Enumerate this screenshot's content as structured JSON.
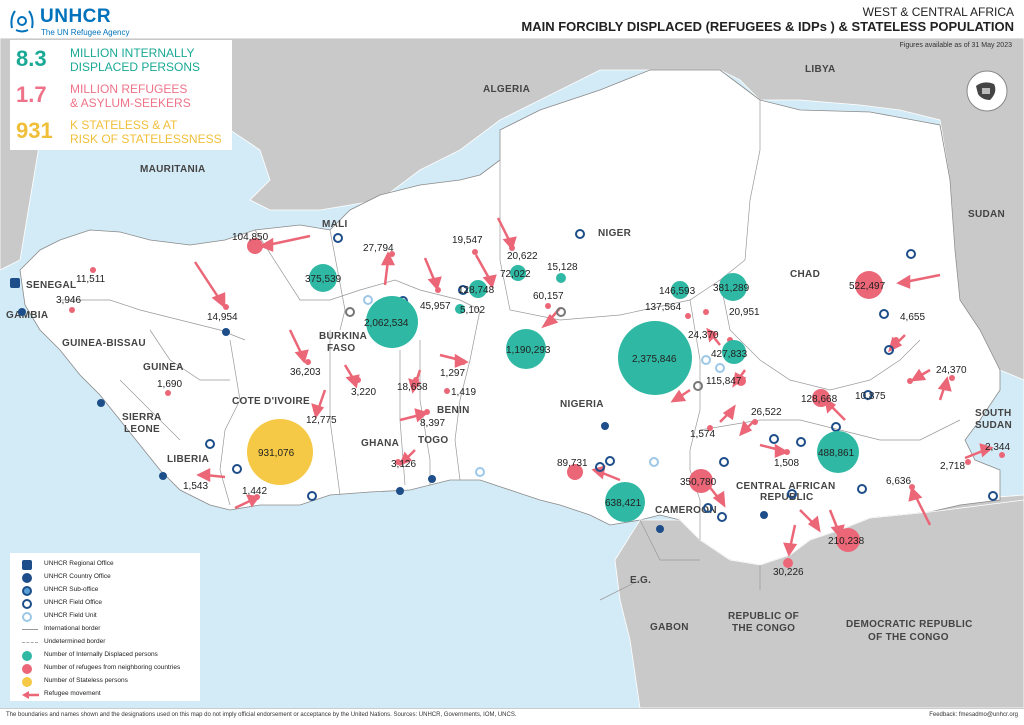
{
  "header": {
    "logo_name": "UNHCR",
    "logo_tagline": "The UN Refugee Agency",
    "region": "WEST & CENTRAL AFRICA",
    "title": "MAIN FORCIBLY DISPLACED (REFUGEES & IDPs ) & STATELESS POPULATION",
    "subtitle": "Figures available as of 31 May 2023"
  },
  "stats": [
    {
      "number": "8.3",
      "text_line1": "MILLION INTERNALLY",
      "text_line2": "DISPLACED PERSONS",
      "color": "#1aa995"
    },
    {
      "number": "1.7",
      "text_line1": "MILLION REFUGEES",
      "text_line2": "& ASYLUM-SEEKERS",
      "color": "#ee7388"
    },
    {
      "number": "931",
      "text_line1": "K STATELESS & AT",
      "text_line2": "RISK OF STATELESSNESS",
      "color": "#f0bf3a"
    }
  ],
  "colors": {
    "idp": "#2fb8a3",
    "refugee": "#eb6677",
    "stateless": "#f5c945",
    "office": "#1d4e89",
    "land_focus": "#ffffff",
    "land_other": "#c8c8c8",
    "sea": "#cfe8f5"
  },
  "countries": {
    "mauritania": "MAURITANIA",
    "algeria": "ALGERIA",
    "libya": "LIBYA",
    "mali": "MALI",
    "niger": "NIGER",
    "chad": "CHAD",
    "sudan": "SUDAN",
    "senegal": "SENEGAL",
    "gambia": "GAMBIA",
    "guinea_bissau": "GUINEA-BISSAU",
    "guinea": "GUINEA",
    "sierra_leone_1": "SIERRA",
    "sierra_leone_2": "LEONE",
    "liberia": "LIBERIA",
    "cote_divoire": "COTE D'IVOIRE",
    "burkina_1": "BURKINA",
    "burkina_2": "FASO",
    "ghana": "GHANA",
    "togo": "TOGO",
    "benin": "BENIN",
    "nigeria": "NIGERIA",
    "cameroon": "CAMEROON",
    "car_1": "CENTRAL AFRICAN",
    "car_2": "REPUBLIC",
    "south_sudan_1": "SOUTH",
    "south_sudan_2": "SUDAN",
    "eg": "E.G.",
    "gabon": "GABON",
    "roc_1": "REPUBLIC OF",
    "roc_2": "THE CONGO",
    "drc_1": "DEMOCRATIC REPUBLIC",
    "drc_2": "OF THE CONGO"
  },
  "values": {
    "idp_mali": "375,539",
    "idp_burkina": "2,062,534",
    "idp_niger_w": "128,748",
    "idp_niger_2": "72,022",
    "idp_nigeria_nw": "1,190,293",
    "idp_nigeria_ne": "2,375,846",
    "idp_chad_1": "381,289",
    "idp_chad_2": "146,593",
    "idp_chad_3": "427,833",
    "idp_car": "488,861",
    "idp_cameroon": "638,421",
    "stateless_ci": "931,076",
    "ref_mauritania": "104,850",
    "ref_chad_east": "522,497",
    "ref_car_1": "350,780",
    "ref_car_2": "128,668",
    "ref_cameroon": "89,731",
    "ref_drc": "210,238",
    "r_11511": "11,511",
    "r_3946": "3,946",
    "r_14954": "14,954",
    "r_27794": "27,794",
    "r_19547": "19,547",
    "r_20622": "20,622",
    "r_15128": "15,128",
    "r_60157": "60,157",
    "r_45957": "45,957",
    "r_5102": "5,102",
    "r_137564": "137,564",
    "r_20951": "20,951",
    "r_24370a": "24,370",
    "r_4655": "4,655",
    "r_24370b": "24,370",
    "r_115847": "115,847",
    "r_36203": "36,203",
    "r_3220": "3,220",
    "r_1297": "1,297",
    "r_18658": "18,658",
    "r_1419": "1,419",
    "r_8397": "8,397",
    "r_12775": "12,775",
    "r_1690": "1,690",
    "r_3126": "3,126",
    "r_1543": "1,543",
    "r_1442": "1,442",
    "r_1574": "1,574",
    "r_26522": "26,522",
    "r_1508": "1,508",
    "r_10875": "10,875",
    "r_2718": "2,718",
    "r_2344": "2,344",
    "r_6636": "6,636",
    "r_30226": "30,226"
  },
  "legend": [
    {
      "label": "UNHCR Regional Office",
      "icon": "regional-office-icon"
    },
    {
      "label": "UNHCR Country Office",
      "icon": "country-office-icon"
    },
    {
      "label": "UNHCR Sub-office",
      "icon": "sub-office-icon"
    },
    {
      "label": "UNHCR Field Office",
      "icon": "field-office-icon"
    },
    {
      "label": "UNHCR Field Unit",
      "icon": "field-unit-icon"
    },
    {
      "label": "International border",
      "icon": "international-border-icon"
    },
    {
      "label": "Undetermined border",
      "icon": "undetermined-border-icon"
    },
    {
      "label": "Number of Internally Displaced persons",
      "icon": "idp-circle-icon"
    },
    {
      "label": "Number of refugees from neighboring countries",
      "icon": "refugee-circle-icon"
    },
    {
      "label": "Number of Stateless persons",
      "icon": "stateless-circle-icon"
    },
    {
      "label": "Refugee movement",
      "icon": "movement-arrow-icon"
    }
  ],
  "footer": {
    "disclaimer": "The boundaries and names shown and the designations used on this map do not imply official endorsement or acceptance by the United Nations. Sources: UNHCR, Governments, IOM, UNCS.",
    "feedback": "Feedback: fmesadmo@unhcr.org"
  }
}
